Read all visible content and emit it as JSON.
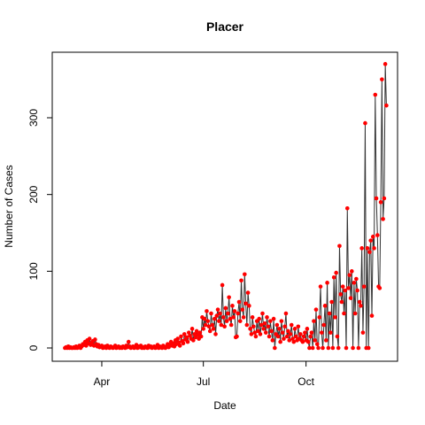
{
  "chart_data": {
    "type": "line",
    "title": "Placer",
    "x_label": "Date",
    "y_label": "Number of Cases",
    "xlim": [
      -44.4,
      265
    ],
    "ylim": [
      -17.3,
      385.4
    ],
    "xticks": [
      {
        "value": 0,
        "label": "Apr"
      },
      {
        "value": 91,
        "label": "Jul"
      },
      {
        "value": 183,
        "label": "Oct"
      }
    ],
    "yticks": [
      0,
      100,
      200,
      300
    ],
    "x": [
      -33,
      -32,
      -31,
      -30,
      -29,
      -28,
      -27,
      -26,
      -25,
      -24,
      -23,
      -22,
      -21,
      -20,
      -19,
      -18,
      -17,
      -16,
      -15,
      -14,
      -13,
      -12,
      -11,
      -10,
      -9,
      -8,
      -7,
      -6,
      -5,
      -4,
      -3,
      -2,
      -1,
      0,
      1,
      2,
      3,
      4,
      5,
      6,
      7,
      8,
      9,
      10,
      11,
      12,
      13,
      14,
      15,
      16,
      17,
      18,
      19,
      20,
      21,
      22,
      23,
      24,
      25,
      26,
      27,
      28,
      29,
      30,
      31,
      32,
      33,
      34,
      35,
      36,
      37,
      38,
      39,
      40,
      41,
      42,
      43,
      44,
      45,
      46,
      47,
      48,
      49,
      50,
      51,
      52,
      53,
      54,
      55,
      56,
      57,
      58,
      59,
      60,
      61,
      62,
      63,
      64,
      65,
      66,
      67,
      68,
      69,
      70,
      71,
      72,
      73,
      74,
      75,
      76,
      77,
      78,
      79,
      80,
      81,
      82,
      83,
      84,
      85,
      86,
      87,
      88,
      89,
      90,
      91,
      92,
      93,
      94,
      95,
      96,
      97,
      98,
      99,
      100,
      101,
      102,
      103,
      104,
      105,
      106,
      107,
      108,
      109,
      110,
      111,
      112,
      113,
      114,
      115,
      116,
      117,
      118,
      119,
      120,
      121,
      122,
      123,
      124,
      125,
      126,
      127,
      128,
      129,
      130,
      131,
      132,
      133,
      134,
      135,
      136,
      137,
      138,
      139,
      140,
      141,
      142,
      143,
      144,
      145,
      146,
      147,
      148,
      149,
      150,
      151,
      152,
      153,
      154,
      155,
      156,
      157,
      158,
      159,
      160,
      161,
      162,
      163,
      164,
      165,
      166,
      167,
      168,
      169,
      170,
      171,
      172,
      173,
      174,
      175,
      176,
      177,
      178,
      179,
      180,
      181,
      182,
      183,
      184,
      185,
      186,
      187,
      188,
      189,
      190,
      191,
      192,
      193,
      194,
      195,
      196,
      197,
      198,
      199,
      200,
      201,
      202,
      203,
      204,
      205,
      206,
      207,
      208,
      209,
      210,
      211,
      212,
      213,
      214,
      215,
      216,
      217,
      218,
      219,
      220,
      221,
      222,
      223,
      224,
      225,
      226,
      227,
      228,
      229,
      230,
      231,
      232,
      233,
      234,
      235,
      236,
      237,
      238,
      239,
      240,
      241,
      242,
      243,
      244,
      245,
      246,
      247,
      248,
      249,
      250,
      251,
      252,
      253,
      254,
      255
    ],
    "series": [
      {
        "line_color": "#333333",
        "color": "#ff0000",
        "values": [
          0,
          1,
          0,
          2,
          0,
          1,
          0,
          0,
          1,
          0,
          2,
          0,
          1,
          3,
          0,
          2,
          5,
          4,
          8,
          3,
          10,
          6,
          12,
          4,
          7,
          9,
          3,
          11,
          5,
          2,
          4,
          1,
          2,
          3,
          0,
          1,
          2,
          0,
          3,
          1,
          0,
          2,
          1,
          0,
          1,
          3,
          0,
          1,
          2,
          0,
          1,
          0,
          2,
          1,
          0,
          3,
          1,
          8,
          2,
          0,
          1,
          2,
          0,
          1,
          4,
          0,
          2,
          1,
          3,
          0,
          1,
          0,
          2,
          1,
          0,
          3,
          1,
          2,
          0,
          1,
          2,
          0,
          1,
          4,
          0,
          2,
          1,
          0,
          3,
          1,
          0,
          2,
          5,
          1,
          4,
          8,
          3,
          6,
          2,
          10,
          5,
          12,
          7,
          3,
          15,
          9,
          6,
          18,
          11,
          14,
          8,
          20,
          16,
          12,
          25,
          10,
          18,
          14,
          22,
          17,
          12,
          20,
          15,
          40,
          25,
          38,
          30,
          48,
          35,
          28,
          22,
          45,
          30,
          25,
          38,
          18,
          42,
          50,
          35,
          45,
          30,
          82,
          40,
          28,
          52,
          35,
          45,
          66,
          38,
          30,
          55,
          40,
          48,
          14,
          15,
          45,
          60,
          35,
          88,
          50,
          40,
          96,
          58,
          30,
          72,
          55,
          25,
          18,
          40,
          28,
          20,
          15,
          35,
          22,
          38,
          18,
          30,
          45,
          25,
          32,
          20,
          40,
          28,
          15,
          35,
          22,
          10,
          38,
          0,
          18,
          30,
          15,
          25,
          8,
          35,
          20,
          12,
          28,
          45,
          15,
          22,
          10,
          18,
          30,
          12,
          8,
          25,
          15,
          10,
          28,
          12,
          18,
          10,
          8,
          15,
          20,
          10,
          25,
          8,
          0,
          15,
          20,
          0,
          35,
          10,
          50,
          5,
          0,
          40,
          80,
          20,
          0,
          30,
          55,
          10,
          85,
          0,
          45,
          20,
          60,
          0,
          92,
          40,
          98,
          15,
          0,
          133,
          70,
          60,
          80,
          45,
          75,
          0,
          182,
          78,
          95,
          65,
          100,
          0,
          85,
          45,
          90,
          75,
          0,
          60,
          55,
          130,
          20,
          80,
          293,
          0,
          130,
          0,
          125,
          140,
          42,
          145,
          130,
          330,
          195,
          147,
          80,
          78,
          190,
          350,
          168,
          195,
          370,
          316
        ]
      }
    ]
  }
}
